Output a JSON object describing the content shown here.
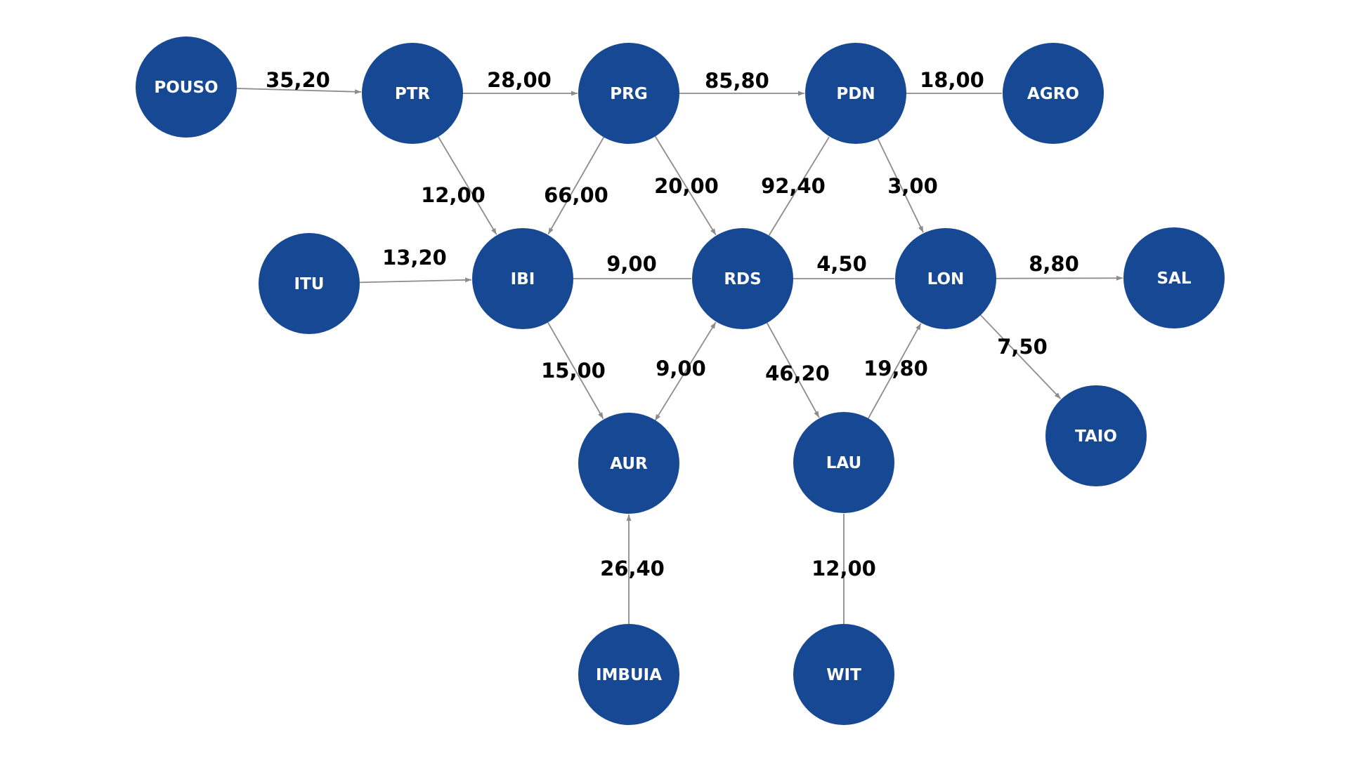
{
  "colors": {
    "node_fill": "#174893",
    "node_text": "#ffffff",
    "edge_line": "#8c8c8c",
    "edge_text": "#000000",
    "background": "#ffffff"
  },
  "nodes": [
    {
      "id": "POUSO",
      "label": "POUSO"
    },
    {
      "id": "PTR",
      "label": "PTR"
    },
    {
      "id": "PRG",
      "label": "PRG"
    },
    {
      "id": "PDN",
      "label": "PDN"
    },
    {
      "id": "AGRO",
      "label": "AGRO"
    },
    {
      "id": "ITU",
      "label": "ITU"
    },
    {
      "id": "IBI",
      "label": "IBI"
    },
    {
      "id": "RDS",
      "label": "RDS"
    },
    {
      "id": "LON",
      "label": "LON"
    },
    {
      "id": "SAL",
      "label": "SAL"
    },
    {
      "id": "AUR",
      "label": "AUR"
    },
    {
      "id": "LAU",
      "label": "LAU"
    },
    {
      "id": "TAIO",
      "label": "TAIO"
    },
    {
      "id": "IMBUIA",
      "label": "IMBUIA"
    },
    {
      "id": "WIT",
      "label": "WIT"
    }
  ],
  "edges": [
    {
      "from": "POUSO",
      "to": "PTR",
      "label": "35,20",
      "arrow": true
    },
    {
      "from": "PTR",
      "to": "PRG",
      "label": "28,00",
      "arrow": true
    },
    {
      "from": "PRG",
      "to": "PDN",
      "label": "85,80",
      "arrow": true
    },
    {
      "from": "PDN",
      "to": "AGRO",
      "label": "18,00",
      "arrow": false
    },
    {
      "from": "PTR",
      "to": "IBI",
      "label": "12,00",
      "arrow": true
    },
    {
      "from": "PRG",
      "to": "IBI",
      "label": "66,00",
      "arrow": true
    },
    {
      "from": "PRG",
      "to": "RDS",
      "label": "20,00",
      "arrow": true
    },
    {
      "from": "RDS",
      "to": "PDN",
      "label": "92,40",
      "arrow": false
    },
    {
      "from": "PDN",
      "to": "LON",
      "label": "3,00",
      "arrow": true
    },
    {
      "from": "ITU",
      "to": "IBI",
      "label": "13,20",
      "arrow": true
    },
    {
      "from": "IBI",
      "to": "RDS",
      "label": "9,00",
      "arrow": false
    },
    {
      "from": "RDS",
      "to": "LON",
      "label": "4,50",
      "arrow": false
    },
    {
      "from": "LON",
      "to": "SAL",
      "label": "8,80",
      "arrow": true
    },
    {
      "from": "IBI",
      "to": "AUR",
      "label": "15,00",
      "arrow": true
    },
    {
      "from": "AUR",
      "to": "RDS",
      "label": "9,00",
      "arrow": true,
      "both": true
    },
    {
      "from": "RDS",
      "to": "LAU",
      "label": "46,20",
      "arrow": true
    },
    {
      "from": "LAU",
      "to": "LON",
      "label": "19,80",
      "arrow": true
    },
    {
      "from": "LON",
      "to": "TAIO",
      "label": "7,50",
      "arrow": true
    },
    {
      "from": "IMBUIA",
      "to": "AUR",
      "label": "26,40",
      "arrow": true
    },
    {
      "from": "WIT",
      "to": "LAU",
      "label": "12,00",
      "arrow": false
    }
  ]
}
